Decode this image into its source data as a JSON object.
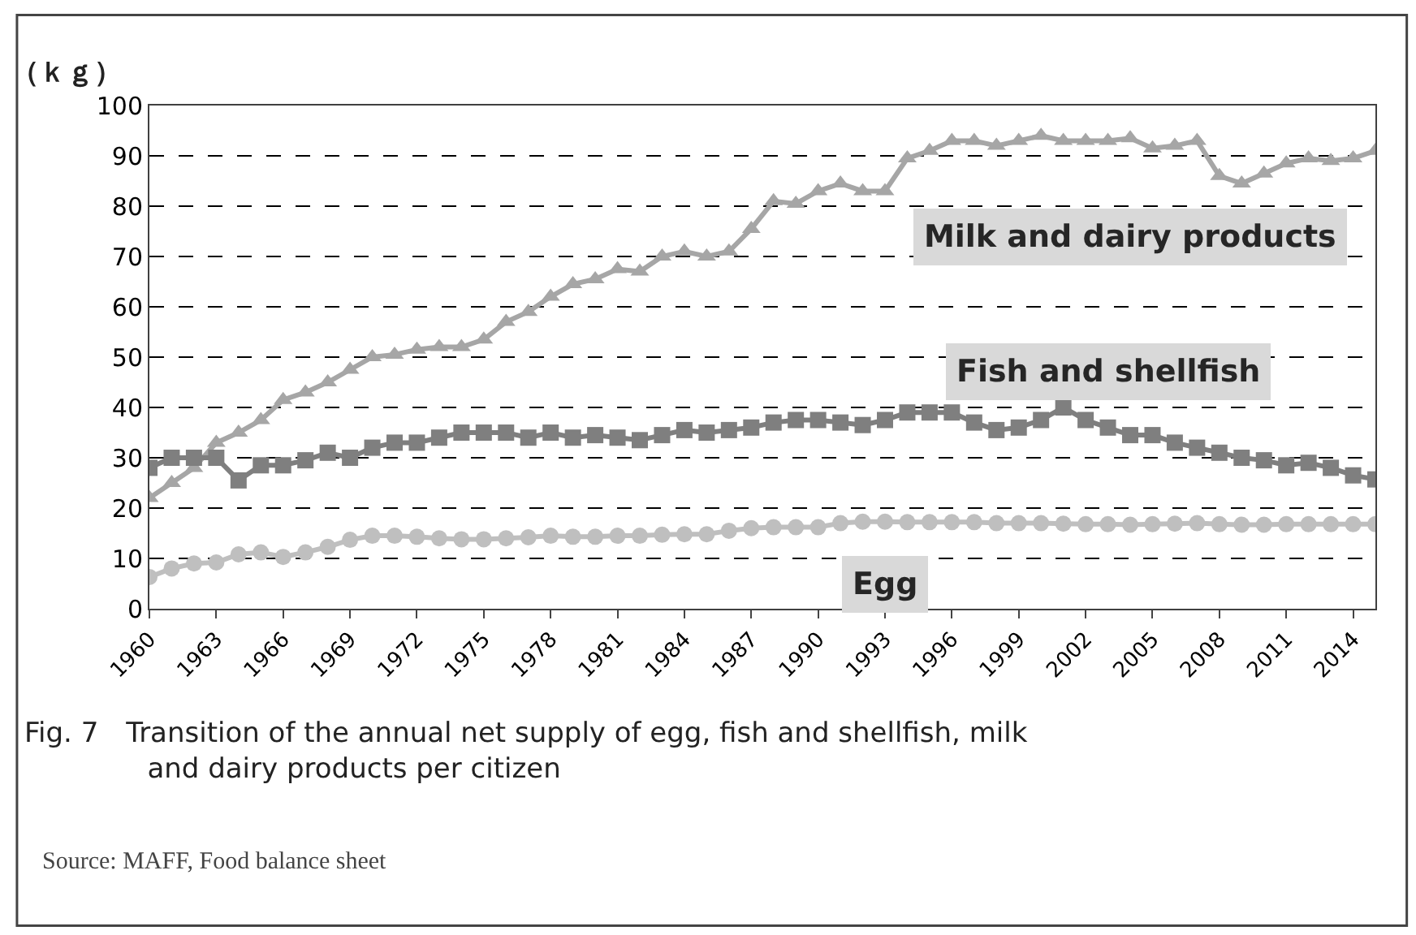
{
  "chart_data": {
    "type": "line",
    "title": "Fig. 7　Transition of the annual net supply of egg, fish and shellfish, milk and dairy products per citizen",
    "ylabel": "（ｋｇ）",
    "annotations": [
      "Source: MAFF, Food balance sheet"
    ],
    "categories": [
      "1960",
      null,
      null,
      "1963",
      null,
      null,
      "1966",
      null,
      null,
      "1969",
      null,
      null,
      "1972",
      null,
      null,
      "1975",
      null,
      null,
      "1978",
      null,
      null,
      "1981",
      null,
      null,
      "1984",
      null,
      null,
      "1987",
      null,
      null,
      "1990",
      null,
      null,
      "1993",
      null,
      null,
      "1996",
      null,
      null,
      "1999",
      null,
      null,
      "2002",
      null,
      null,
      "2005",
      null,
      null,
      "2008",
      null,
      null,
      "2011",
      null,
      null,
      "2014",
      null
    ],
    "ylim": [
      0,
      100
    ],
    "yticks": [
      0,
      10,
      20,
      30,
      40,
      50,
      60,
      70,
      80,
      90,
      100
    ],
    "grid": "y",
    "legend": false,
    "line_style": "solid",
    "series": [
      {
        "name": "Milk and dairy products",
        "color": "#a6a6a6",
        "marker": "triangle",
        "values": [
          22,
          25,
          28,
          33,
          35,
          37.5,
          41.5,
          43,
          45,
          47.5,
          50,
          50.5,
          51.5,
          52,
          52,
          53.5,
          57,
          59,
          62,
          64.5,
          65.5,
          67.5,
          67,
          70,
          71,
          70,
          71,
          75.5,
          81,
          80.5,
          83,
          84.5,
          83,
          83,
          89.5,
          91,
          93,
          93,
          92,
          93,
          94,
          93,
          93,
          93,
          93.5,
          91.5,
          92,
          93,
          86,
          84.5,
          86.5,
          88.5,
          89.5,
          89,
          89.5,
          91
        ]
      },
      {
        "name": "Fish and shellfish",
        "color": "#7f7f7f",
        "marker": "square",
        "values": [
          28,
          30,
          30,
          30,
          25.5,
          28.5,
          28.5,
          29.5,
          31,
          30,
          32,
          33,
          33,
          34,
          35,
          35,
          35,
          34,
          35,
          34,
          34.5,
          34,
          33.5,
          34.5,
          35.5,
          35,
          35.5,
          36,
          37,
          37.5,
          37.5,
          37,
          36.5,
          37.5,
          39,
          39,
          39,
          37,
          35.5,
          36,
          37.5,
          40,
          37.5,
          36,
          34.5,
          34.5,
          33,
          32,
          31,
          30,
          29.5,
          28.5,
          29,
          28,
          26.5,
          25.7
        ]
      },
      {
        "name": "Egg",
        "color": "#bfbfbf",
        "marker": "circle",
        "values": [
          6.3,
          8,
          9,
          9.2,
          10.8,
          11.2,
          10.3,
          11.2,
          12.3,
          13.7,
          14.5,
          14.5,
          14.3,
          14,
          13.8,
          13.8,
          14,
          14.2,
          14.5,
          14.3,
          14.3,
          14.5,
          14.5,
          14.7,
          14.8,
          14.8,
          15.5,
          16,
          16.2,
          16.2,
          16.2,
          17,
          17.3,
          17.3,
          17.2,
          17.2,
          17.2,
          17.2,
          17,
          17,
          17,
          16.9,
          16.8,
          16.8,
          16.7,
          16.8,
          16.9,
          17,
          16.8,
          16.7,
          16.7,
          16.8,
          16.8,
          16.8,
          16.8,
          16.8
        ]
      }
    ]
  }
}
